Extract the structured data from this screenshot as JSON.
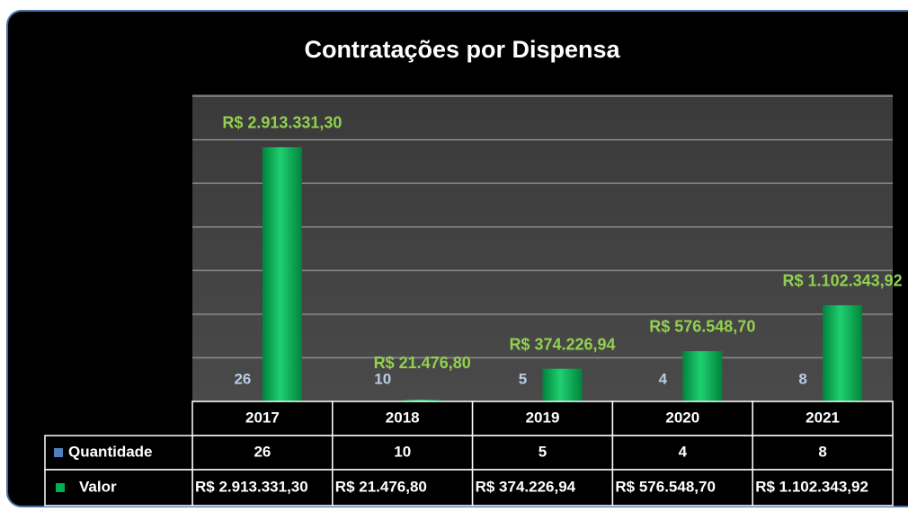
{
  "chart_data": {
    "type": "bar",
    "title": "Contratações por Dispensa",
    "categories": [
      "2017",
      "2018",
      "2019",
      "2020",
      "2021"
    ],
    "series": [
      {
        "name": "Quantidade",
        "color": "#4f81bd",
        "values": [
          26,
          10,
          5,
          4,
          8
        ]
      },
      {
        "name": "Valor",
        "color": "#00b050",
        "values": [
          2913331.3,
          21476.8,
          374226.94,
          576548.7,
          1102343.92
        ],
        "value_labels": [
          "R$ 2.913.331,30",
          "R$ 21.476,80",
          "R$ 374.226,94",
          "R$ 576.548,70",
          "R$ 1.102.343,92"
        ]
      }
    ],
    "ylim": [
      0,
      3500000
    ],
    "yticks": [
      0,
      500000,
      1000000,
      1500000,
      2000000,
      2500000,
      3000000,
      3500000
    ],
    "grid": true,
    "data_table": true
  }
}
